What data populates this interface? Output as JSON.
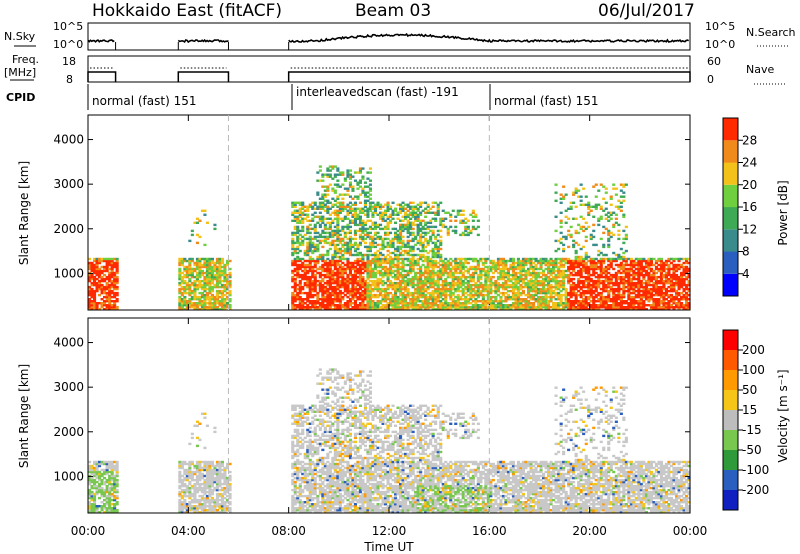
{
  "header": {
    "title_left": "Hokkaido East (fitACF)",
    "title_mid": "Beam 03",
    "title_right": "06/Jul/2017"
  },
  "left_labels": {
    "nsky": "N.Sky",
    "freq": "Freq.",
    "mhz": "[MHz]",
    "cpid": "CPID"
  },
  "right_labels": {
    "nsearch": "N.Search",
    "nave": "Nave"
  },
  "ticks": {
    "noise_top_left": "10^5",
    "noise_bot_left": "10^0",
    "noise_top_right": "10^5",
    "noise_bot_right": "10^0",
    "freq_top": "18",
    "freq_bot": "8",
    "nave_top": "60",
    "nave_bot": "0"
  },
  "cpid_labels": [
    {
      "text": "normal (fast) 151"
    },
    {
      "text": "interleavedscan (fast) -191"
    },
    {
      "text": "normal (fast) 151"
    }
  ],
  "colors": {
    "power": [
      "#0000ff",
      "#2b5fbf",
      "#3a8c8c",
      "#3faa55",
      "#6fcf3f",
      "#f2c21a",
      "#f08a1a",
      "#ff2a00"
    ],
    "velocity": [
      "#ff0000",
      "#ff5a00",
      "#ff9a00",
      "#f5c518",
      "#bdbdbd",
      "#78c850",
      "#2e9a3a",
      "#2a5fbf",
      "#1020c0"
    ],
    "velocity_mid": "#c8c8c8"
  },
  "chart_data": [
    {
      "type": "heatmap",
      "name": "power",
      "ylabel": "Slant Range [km]",
      "xlabel": "Time UT",
      "ylim": [
        180,
        4550
      ],
      "xlim": [
        0,
        24
      ],
      "yticks": [
        1000,
        2000,
        3000,
        4000
      ],
      "xticks": [
        "00:00",
        "04:00",
        "08:00",
        "12:00",
        "16:00",
        "20:00",
        "00:00"
      ],
      "colorbar": {
        "label": "Power [dB]",
        "ticks": [
          "4",
          "8",
          "12",
          "16",
          "20",
          "24",
          "28"
        ],
        "range": [
          0,
          30
        ]
      }
    },
    {
      "type": "heatmap",
      "name": "velocity",
      "ylabel": "Slant Range [km]",
      "xlabel": "Time UT",
      "ylim": [
        180,
        4550
      ],
      "xlim": [
        0,
        24
      ],
      "yticks": [
        1000,
        2000,
        3000,
        4000
      ],
      "xticks": [
        "00:00",
        "04:00",
        "08:00",
        "12:00",
        "16:00",
        "20:00",
        "00:00"
      ],
      "colorbar": {
        "label": "Velocity [m s⁻¹]",
        "ticks": [
          "200",
          "100",
          "50",
          "15",
          "-15",
          "-50",
          "-100",
          "-200"
        ]
      }
    }
  ]
}
